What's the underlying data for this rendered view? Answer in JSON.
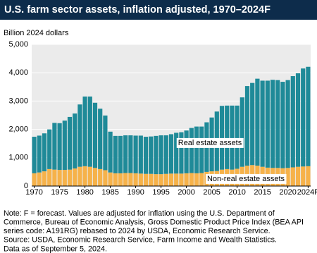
{
  "chart_data": {
    "type": "stacked-bar",
    "title": "U.S. farm sector assets, inflation adjusted, 1970–2024F",
    "y_label": "Billion 2024 dollars",
    "categories": [
      "1970",
      null,
      null,
      null,
      null,
      "1975",
      null,
      null,
      null,
      null,
      "1980",
      null,
      null,
      null,
      null,
      "1985",
      null,
      null,
      null,
      null,
      "1990",
      null,
      null,
      null,
      null,
      "1995",
      null,
      null,
      null,
      null,
      "2000",
      null,
      null,
      null,
      null,
      "2005",
      null,
      null,
      null,
      null,
      "2010",
      null,
      null,
      null,
      null,
      "2015",
      null,
      null,
      null,
      null,
      "2020",
      null,
      null,
      null,
      "2024F"
    ],
    "series": [
      {
        "name": "Non-real estate assets",
        "color": "#f6b24a",
        "values": [
          450,
          480,
          520,
          600,
          580,
          570,
          570,
          580,
          620,
          680,
          700,
          680,
          640,
          600,
          560,
          480,
          450,
          450,
          460,
          460,
          450,
          440,
          430,
          430,
          420,
          420,
          430,
          440,
          440,
          440,
          450,
          460,
          450,
          460,
          500,
          520,
          530,
          580,
          600,
          580,
          610,
          680,
          720,
          740,
          720,
          680,
          650,
          640,
          640,
          630,
          640,
          660,
          680,
          690,
          700
        ]
      },
      {
        "name": "Real estate assets",
        "color": "#1f8a98",
        "values": [
          1290,
          1300,
          1340,
          1400,
          1650,
          1650,
          1740,
          1860,
          1940,
          2200,
          2460,
          2480,
          2300,
          2130,
          1930,
          1440,
          1320,
          1320,
          1330,
          1330,
          1330,
          1340,
          1310,
          1320,
          1350,
          1370,
          1360,
          1390,
          1440,
          1460,
          1510,
          1590,
          1650,
          1640,
          1750,
          1900,
          2100,
          2250,
          2240,
          2260,
          2230,
          2450,
          2810,
          2900,
          3070,
          3040,
          3070,
          3110,
          3100,
          3050,
          3100,
          3220,
          3300,
          3460,
          3510
        ]
      }
    ],
    "ylim": [
      0,
      5000
    ],
    "yticks": [
      0,
      {
        "value": 1000,
        "label": "1,000"
      },
      {
        "value": 2000,
        "label": "2,000"
      },
      {
        "value": 3000,
        "label": "3,000"
      },
      {
        "value": 4000,
        "label": "4,000"
      },
      {
        "value": 5000,
        "label": "5,000"
      }
    ],
    "grid": true,
    "notes": [
      "Note: F = forecast. Values are adjusted for inflation using the U.S. Department of",
      "Commerce, Bureau of Economic Analysis, Gross Domestic Product Price Index (BEA API",
      "series code: A191RG) rebased to 2024 by USDA, Economic Research Service.",
      "Source: USDA, Economic Research Service, Farm Income and Wealth Statistics.",
      "Data as of September 5, 2024."
    ]
  }
}
